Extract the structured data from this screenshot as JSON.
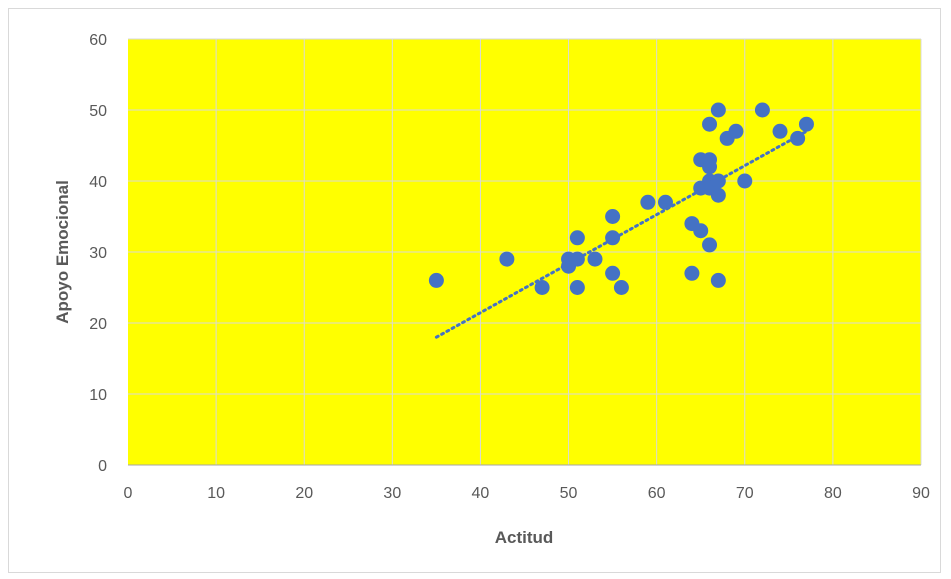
{
  "chart_data": {
    "type": "scatter",
    "xlabel": "Actitud",
    "ylabel": "Apoyo Emocional",
    "xlim": [
      0,
      90
    ],
    "ylim": [
      0,
      60
    ],
    "x_ticks": [
      0,
      10,
      20,
      30,
      40,
      50,
      60,
      70,
      80,
      90
    ],
    "y_ticks": [
      0,
      10,
      20,
      30,
      40,
      50,
      60
    ],
    "grid": "vertical and horizontal",
    "plot_background": "#ffff00",
    "marker_color": "#4472c4",
    "trendline": {
      "style": "dotted",
      "type": "linear",
      "from": [
        35,
        18
      ],
      "to": [
        77,
        47
      ]
    },
    "points": [
      {
        "x": 35,
        "y": 26
      },
      {
        "x": 43,
        "y": 29
      },
      {
        "x": 47,
        "y": 25
      },
      {
        "x": 50,
        "y": 28
      },
      {
        "x": 50,
        "y": 29
      },
      {
        "x": 51,
        "y": 25
      },
      {
        "x": 51,
        "y": 29
      },
      {
        "x": 51,
        "y": 32
      },
      {
        "x": 53,
        "y": 29
      },
      {
        "x": 55,
        "y": 35
      },
      {
        "x": 55,
        "y": 32
      },
      {
        "x": 55,
        "y": 27
      },
      {
        "x": 56,
        "y": 25
      },
      {
        "x": 59,
        "y": 37
      },
      {
        "x": 61,
        "y": 37
      },
      {
        "x": 64,
        "y": 34
      },
      {
        "x": 64,
        "y": 27
      },
      {
        "x": 65,
        "y": 33
      },
      {
        "x": 65,
        "y": 43
      },
      {
        "x": 65,
        "y": 39
      },
      {
        "x": 66,
        "y": 48
      },
      {
        "x": 66,
        "y": 43
      },
      {
        "x": 66,
        "y": 42
      },
      {
        "x": 66,
        "y": 40
      },
      {
        "x": 66,
        "y": 39
      },
      {
        "x": 66,
        "y": 31
      },
      {
        "x": 67,
        "y": 50
      },
      {
        "x": 67,
        "y": 40
      },
      {
        "x": 67,
        "y": 38
      },
      {
        "x": 67,
        "y": 26
      },
      {
        "x": 68,
        "y": 46
      },
      {
        "x": 69,
        "y": 47
      },
      {
        "x": 70,
        "y": 40
      },
      {
        "x": 72,
        "y": 50
      },
      {
        "x": 74,
        "y": 47
      },
      {
        "x": 76,
        "y": 46
      },
      {
        "x": 77,
        "y": 48
      }
    ]
  }
}
